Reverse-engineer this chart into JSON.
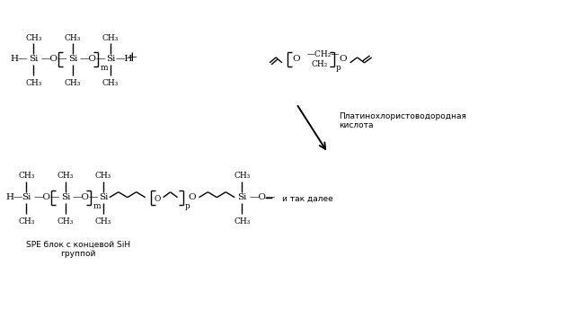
{
  "background_color": "#ffffff",
  "fig_width": 6.4,
  "fig_height": 3.55,
  "dpi": 100,
  "arrow_label": "Платинохлористоводородная\nкислота",
  "spb_label": "SPE блок с концевой SiH\nгруппой",
  "et_cetera": "и так далее"
}
